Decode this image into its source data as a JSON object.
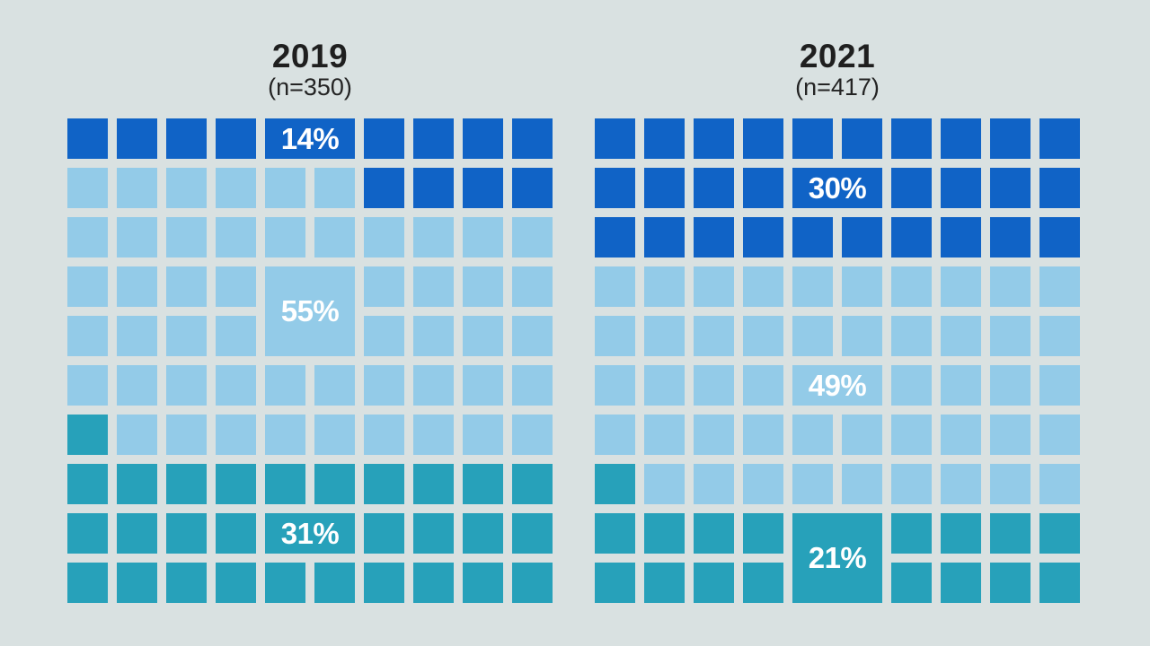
{
  "background": "#d9e1e1",
  "colors": {
    "D": "#1063c6",
    "L": "#93cbe8",
    "T": "#27a1ba",
    "title_text": "#1f1f1f",
    "label_text": "#ffffff"
  },
  "layout_geometry": {
    "note": "geometry lives in template, not data"
  },
  "charts": [
    {
      "title": "2019",
      "subtitle": "(n=350)",
      "rows": [
        "DDDDDDDDDD",
        "LLLLLLDDDD",
        "LLLLLLLLLL",
        "LLLLLLLLLL",
        "LLLLLLLLLL",
        "LLLLLLLLLL",
        "TLLLLLLLLL",
        "TTTTTTTTTT",
        "TTTTTTTTTT",
        "TTTTTTTTTT"
      ],
      "labels": [
        {
          "text": "14%",
          "row": 1,
          "col": 5,
          "rowspan": 1,
          "colspan": 2,
          "color": "D"
        },
        {
          "text": "55%",
          "row": 4,
          "col": 5,
          "rowspan": 2,
          "colspan": 2,
          "color": "L"
        },
        {
          "text": "31%",
          "row": 9,
          "col": 5,
          "rowspan": 1,
          "colspan": 2,
          "color": "T"
        }
      ]
    },
    {
      "title": "2021",
      "subtitle": "(n=417)",
      "rows": [
        "DDDDDDDDDD",
        "DDDDDDDDDD",
        "DDDDDDDDDD",
        "LLLLLLLLLL",
        "LLLLLLLLLL",
        "LLLLLLLLLL",
        "LLLLLLLLLL",
        "TLLLLLLLLL",
        "TTTTTTTTTT",
        "TTTTTTTTTT"
      ],
      "labels": [
        {
          "text": "30%",
          "row": 2,
          "col": 5,
          "rowspan": 1,
          "colspan": 2,
          "color": "D"
        },
        {
          "text": "49%",
          "row": 6,
          "col": 5,
          "rowspan": 1,
          "colspan": 2,
          "color": "L"
        },
        {
          "text": "21%",
          "row": 9,
          "col": 5,
          "rowspan": 2,
          "colspan": 2,
          "color": "T"
        }
      ]
    }
  ],
  "chart_data": {
    "type": "waffle",
    "unit": "1 square = 1 percentage point, 10x10 grid per group",
    "categories": [
      "2019",
      "2021"
    ],
    "groups": [
      {
        "label": "2019",
        "n_label": "(n=350)",
        "series": [
          {
            "name": "top-segment-dark-blue",
            "value": 14
          },
          {
            "name": "middle-segment-light-blue",
            "value": 55
          },
          {
            "name": "bottom-segment-teal",
            "value": 31
          }
        ]
      },
      {
        "label": "2021",
        "n_label": "(n=417)",
        "series": [
          {
            "name": "top-segment-dark-blue",
            "value": 30
          },
          {
            "name": "middle-segment-light-blue",
            "value": 49
          },
          {
            "name": "bottom-segment-teal",
            "value": 21
          }
        ]
      }
    ],
    "legend": "none",
    "title": "",
    "annotations": [
      "14%",
      "55%",
      "31%",
      "30%",
      "49%",
      "21%"
    ]
  }
}
